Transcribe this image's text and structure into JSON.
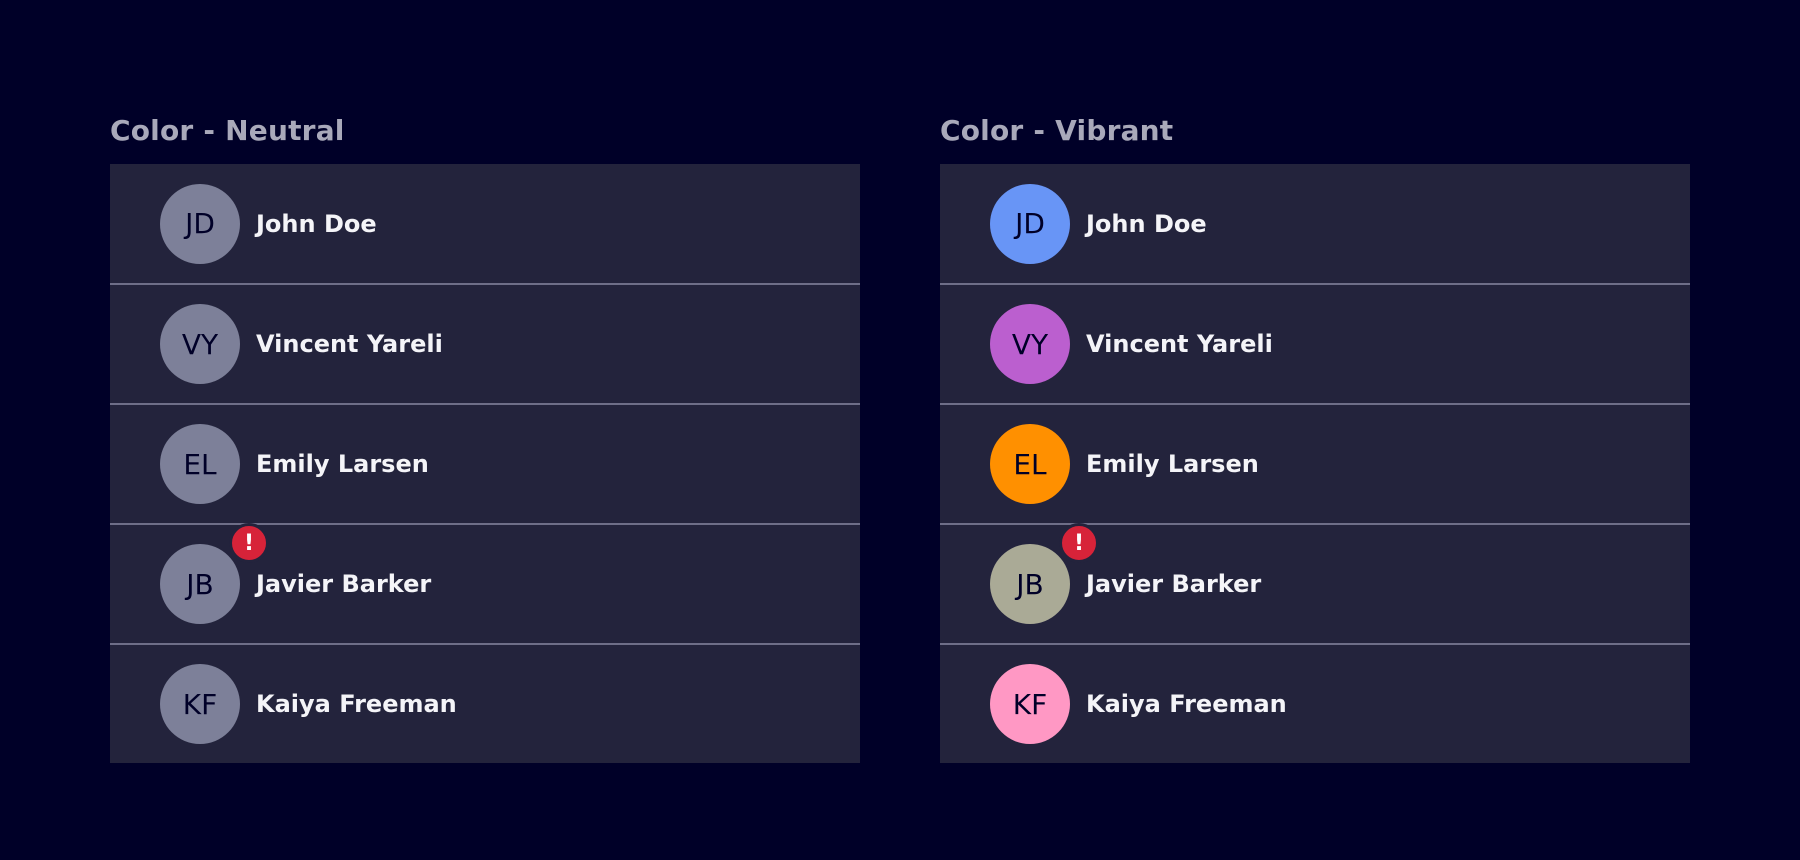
{
  "colors": {
    "background": "#000028",
    "panel": "#23233c",
    "divider": "#6e6e88",
    "alert": "#d72339"
  },
  "sections": [
    {
      "title": "Color - Neutral",
      "items": [
        {
          "initials": "JD",
          "name": "John Doe",
          "color": "#7d8099",
          "alert": false
        },
        {
          "initials": "VY",
          "name": "Vincent Yareli",
          "color": "#7d8099",
          "alert": false
        },
        {
          "initials": "EL",
          "name": "Emily Larsen",
          "color": "#7d8099",
          "alert": false
        },
        {
          "initials": "JB",
          "name": "Javier Barker",
          "color": "#7d8099",
          "alert": true,
          "alert_icon": "exclamation-icon",
          "alert_symbol": "!"
        },
        {
          "initials": "KF",
          "name": "Kaiya Freeman",
          "color": "#7d8099",
          "alert": false
        }
      ]
    },
    {
      "title": "Color - Vibrant",
      "items": [
        {
          "initials": "JD",
          "name": "John Doe",
          "color": "#6895f6",
          "alert": false
        },
        {
          "initials": "VY",
          "name": "Vincent Yareli",
          "color": "#bb5fcf",
          "alert": false
        },
        {
          "initials": "EL",
          "name": "Emily Larsen",
          "color": "#ff9000",
          "alert": false
        },
        {
          "initials": "JB",
          "name": "Javier Barker",
          "color": "#aaaa96",
          "alert": true,
          "alert_icon": "exclamation-icon",
          "alert_symbol": "!"
        },
        {
          "initials": "KF",
          "name": "Kaiya Freeman",
          "color": "#ff98c4",
          "alert": false
        }
      ]
    }
  ]
}
